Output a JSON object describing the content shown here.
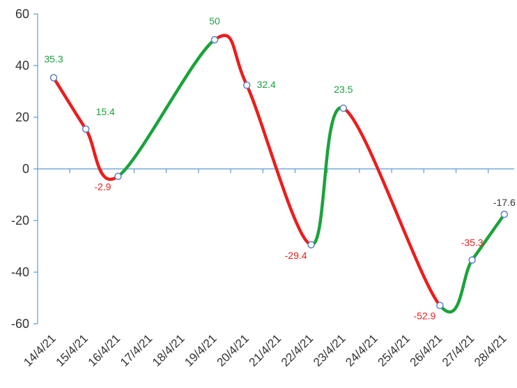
{
  "chart_data": {
    "type": "line",
    "title": "",
    "xlabel": "",
    "ylabel": "",
    "ylim": [
      -60,
      60
    ],
    "yticks": [
      60,
      40,
      20,
      0,
      -20,
      -40,
      -60
    ],
    "grid": false,
    "smooth": true,
    "categories": [
      "14/4/21",
      "15/4/21",
      "16/4/21",
      "17/4/21",
      "18/4/21",
      "19/4/21",
      "20/4/21",
      "21/4/21",
      "22/4/21",
      "23/4/21",
      "24/4/21",
      "25/4/21",
      "26/4/21",
      "27/4/21",
      "28/4/21"
    ],
    "points": [
      {
        "x": "14/4/21",
        "y": 35.3,
        "label": "35.3"
      },
      {
        "x": "15/4/21",
        "y": 15.4,
        "label": "15.4"
      },
      {
        "x": "16/4/21",
        "y": -2.9,
        "label": "-2.9"
      },
      {
        "x": "19/4/21",
        "y": 50,
        "label": "50"
      },
      {
        "x": "20/4/21",
        "y": 32.4,
        "label": "32.4"
      },
      {
        "x": "22/4/21",
        "y": -29.4,
        "label": "-29.4"
      },
      {
        "x": "23/4/21",
        "y": 23.5,
        "label": "23.5"
      },
      {
        "x": "26/4/21",
        "y": -52.9,
        "label": "-52.9"
      },
      {
        "x": "27/4/21",
        "y": -35.3,
        "label": "-35.3"
      },
      {
        "x": "28/4/21",
        "y": -17.6,
        "label": "-17.6"
      }
    ],
    "colors": {
      "rising": "#1aa33a",
      "falling": "#ee1c1c",
      "axis": "#5b9bd5",
      "marker_fill": "#ffffff",
      "marker_stroke": "#5b82c4",
      "label_positive": "#1aa33a",
      "label_negative": "#ee1c1c",
      "label_neutral": "#333333",
      "tick_text": "#333333"
    }
  }
}
